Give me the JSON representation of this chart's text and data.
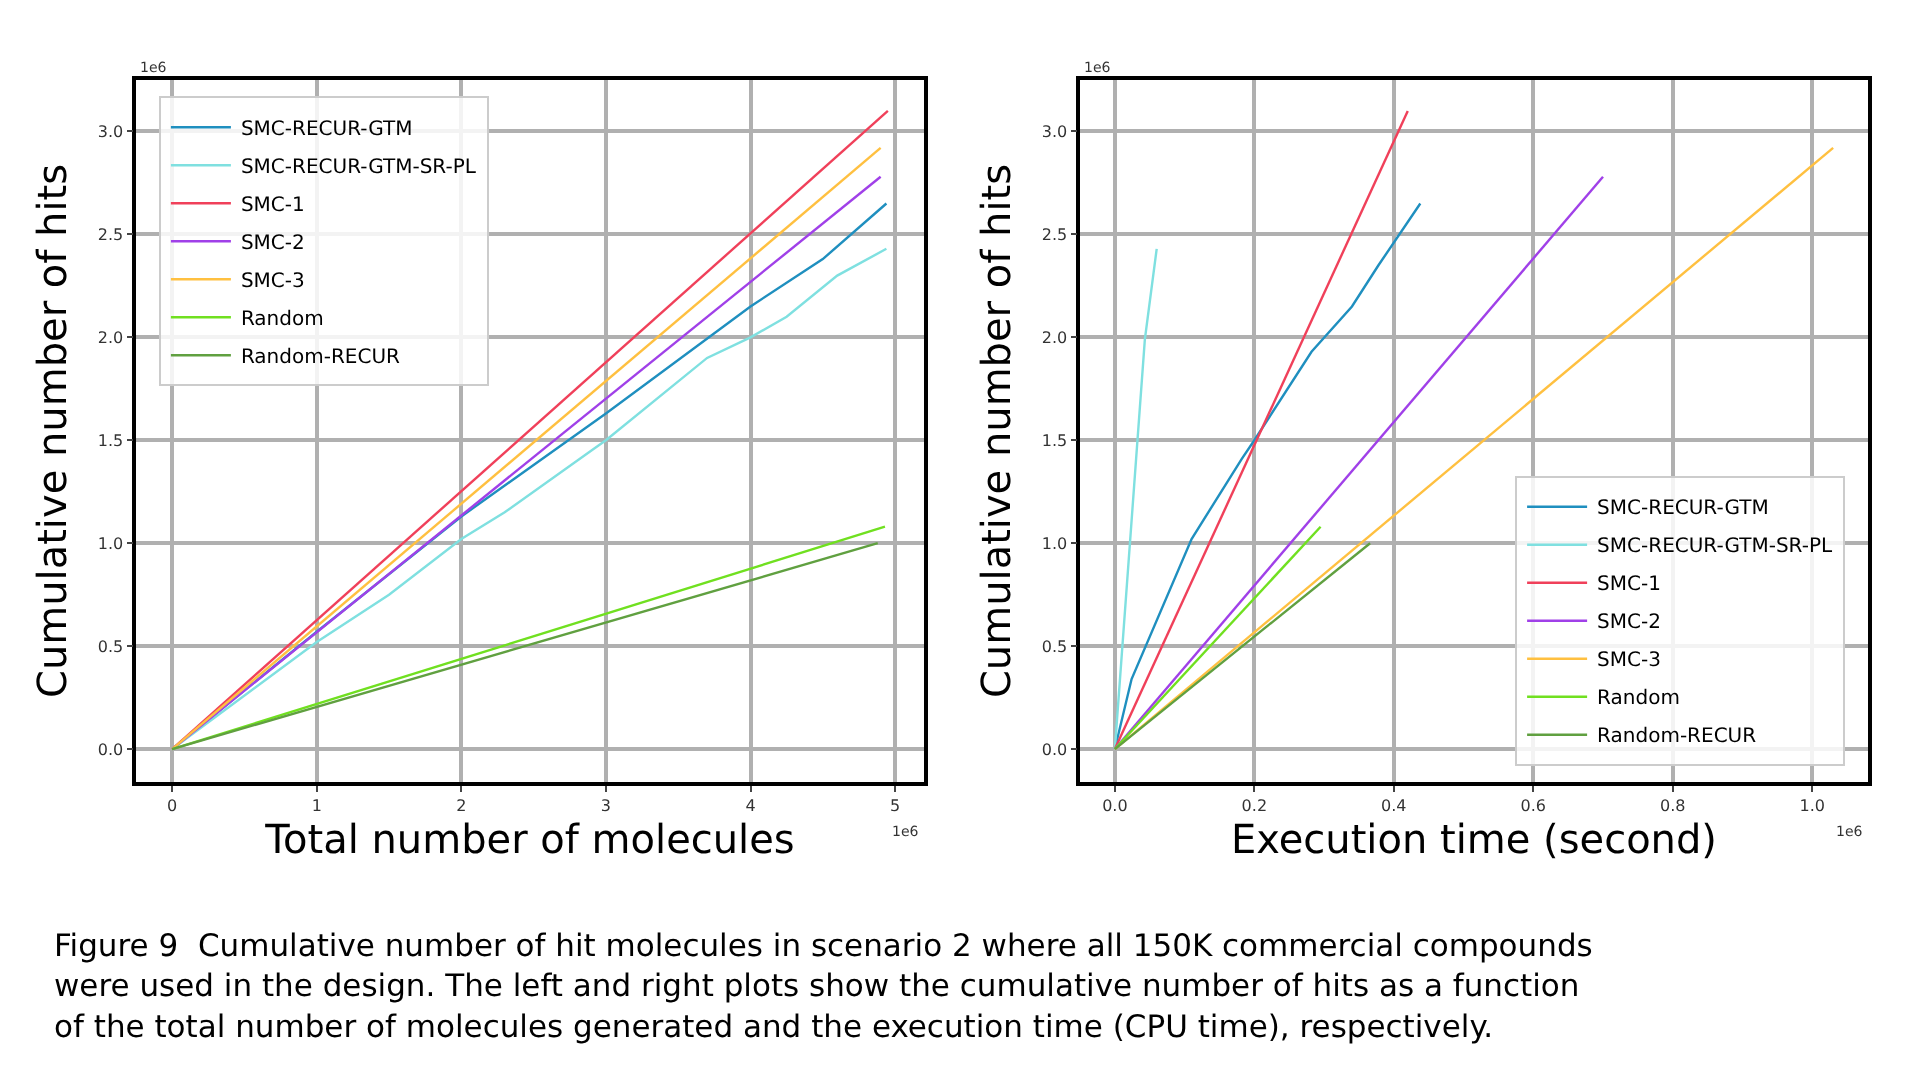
{
  "chart_data": [
    {
      "type": "line",
      "xlabel": "Total number of molecules",
      "ylabel": "Cumulative number of hits",
      "grid": true,
      "legend": "top left",
      "line_style": "solid",
      "marker": "none",
      "annotations": [
        "1e6",
        "1e6",
        "Figure 9  Cumulative number of hit molecules in scenario 2 where all 150K commercial compounds\nwere used in the design. The left and right plots show the cumulative number of hits as a function\nof the total number of molecules generated and the execution time (CPU time), respectively."
      ],
      "xlim": [
        -0.25,
        5.2
      ],
      "ylim": [
        -0.16,
        3.25
      ],
      "xticks": [
        0,
        1,
        2,
        3,
        4,
        5
      ],
      "yticks": [
        {
          "value": 0,
          "label": "0.0"
        },
        0.5,
        {
          "value": 1,
          "label": "1.0"
        },
        1.5,
        {
          "value": 2,
          "label": "2.0"
        },
        2.5,
        {
          "value": 3,
          "label": "3.0"
        }
      ],
      "series": [
        {
          "name": "SMC-RECUR-GTM",
          "color": "#1f8fbf",
          "x": [
            0,
            1,
            2,
            3,
            4,
            4.5,
            4.94
          ],
          "values": [
            0,
            0.57,
            1.13,
            1.63,
            2.15,
            2.38,
            2.65
          ]
        },
        {
          "name": "SMC-RECUR-GTM-SR-PL",
          "color": "#7fe0e0",
          "x": [
            0,
            1,
            1.5,
            2,
            2.3,
            2.9,
            3,
            3.7,
            4,
            4.25,
            4.6,
            4.94
          ],
          "values": [
            0,
            0.52,
            0.75,
            1.02,
            1.15,
            1.45,
            1.5,
            1.9,
            2.0,
            2.1,
            2.3,
            2.43
          ]
        },
        {
          "name": "SMC-1",
          "color": "#f0405a",
          "x": [
            0,
            4.95
          ],
          "values": [
            0,
            3.1
          ]
        },
        {
          "name": "SMC-2",
          "color": "#a040e8",
          "x": [
            0,
            4.9
          ],
          "values": [
            0,
            2.78
          ]
        },
        {
          "name": "SMC-3",
          "color": "#ffc040",
          "x": [
            0,
            4.9
          ],
          "values": [
            0,
            2.92
          ]
        },
        {
          "name": "Random",
          "color": "#70e020",
          "x": [
            0,
            4.93
          ],
          "values": [
            0,
            1.08
          ]
        },
        {
          "name": "Random-RECUR",
          "color": "#60a040",
          "x": [
            0,
            4.88
          ],
          "values": [
            0,
            1.0
          ]
        }
      ]
    },
    {
      "type": "line",
      "xlabel": "Execution time (second)",
      "ylabel": "Cumulative number of hits",
      "grid": true,
      "legend": "bottom right",
      "line_style": "solid",
      "marker": "none",
      "annotations": [
        "1e6",
        "1e6"
      ],
      "xlim": [
        -0.05,
        1.08
      ],
      "ylim": [
        -0.16,
        3.25
      ],
      "xticks": [
        {
          "value": 0,
          "label": "0.0"
        },
        0.2,
        0.4,
        0.6,
        0.8,
        {
          "value": 1,
          "label": "1.0"
        }
      ],
      "yticks": [
        {
          "value": 0,
          "label": "0.0"
        },
        0.5,
        {
          "value": 1,
          "label": "1.0"
        },
        1.5,
        {
          "value": 2,
          "label": "2.0"
        },
        2.5,
        {
          "value": 3,
          "label": "3.0"
        }
      ],
      "series": [
        {
          "name": "SMC-RECUR-GTM",
          "color": "#1f8fbf",
          "x": [
            0,
            0.024,
            0.11,
            0.182,
            0.2,
            0.282,
            0.34,
            0.378,
            0.438
          ],
          "values": [
            0,
            0.34,
            1.02,
            1.41,
            1.5,
            1.93,
            2.15,
            2.35,
            2.65
          ]
        },
        {
          "name": "SMC-RECUR-GTM-SR-PL",
          "color": "#7fe0e0",
          "x": [
            0,
            0.043,
            0.06
          ],
          "values": [
            0,
            1.99,
            2.43
          ]
        },
        {
          "name": "SMC-1",
          "color": "#f0405a",
          "x": [
            0,
            0.42
          ],
          "values": [
            0,
            3.1
          ]
        },
        {
          "name": "SMC-2",
          "color": "#a040e8",
          "x": [
            0,
            0.7
          ],
          "values": [
            0,
            2.78
          ]
        },
        {
          "name": "SMC-3",
          "color": "#ffc040",
          "x": [
            0,
            1.03
          ],
          "values": [
            0,
            2.92
          ]
        },
        {
          "name": "Random",
          "color": "#70e020",
          "x": [
            0,
            0.295
          ],
          "values": [
            0,
            1.08
          ]
        },
        {
          "name": "Random-RECUR",
          "color": "#60a040",
          "x": [
            0,
            0.366
          ],
          "values": [
            0,
            1.0
          ]
        }
      ]
    }
  ]
}
